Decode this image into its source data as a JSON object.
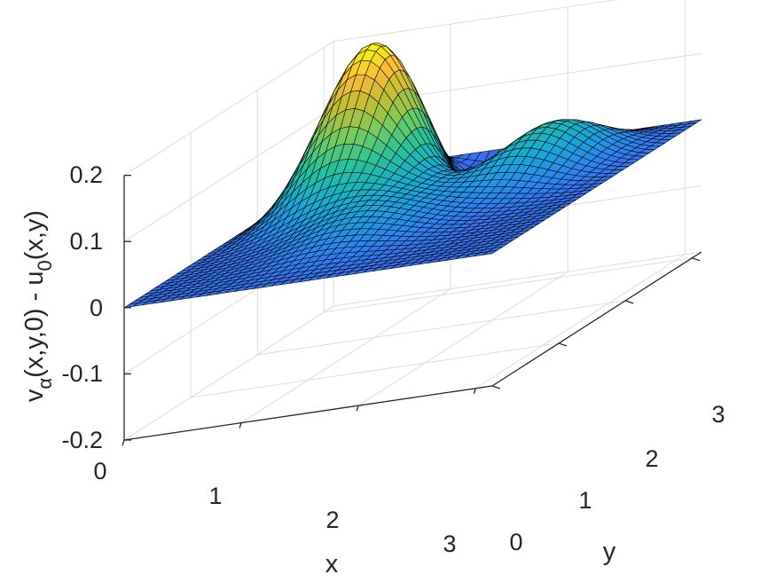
{
  "chart_data": {
    "type": "surface",
    "xlabel": "x",
    "ylabel": "y",
    "zlabel": {
      "main1": "v",
      "sub1": "α",
      "main2": "(x,y,0) - u",
      "sub2": "0",
      "main3": "(x,y)"
    },
    "xlim": [
      0,
      3.14159
    ],
    "ylim": [
      0,
      3.14159
    ],
    "zlim": [
      -0.2,
      0.2
    ],
    "x_ticks": [
      0,
      1,
      2,
      3
    ],
    "x_tick_labels": [
      "0",
      "1",
      "2",
      "3"
    ],
    "y_ticks": [
      0,
      1,
      2,
      3
    ],
    "y_tick_labels": [
      "0",
      "1",
      "2",
      "3"
    ],
    "z_ticks": [
      -0.2,
      -0.1,
      0,
      0.1,
      0.2
    ],
    "z_tick_labels": [
      "-0.2",
      "-0.1",
      "0",
      "0.1",
      "0.2"
    ],
    "grid": true,
    "colormap": "parula",
    "grid_resolution": 41,
    "surface_peaks": [
      {
        "x": 0.72,
        "y": 2.45,
        "z": 0.2
      },
      {
        "x": 2.3,
        "y": 2.65,
        "z": 0.08
      },
      {
        "x": 1.4,
        "y": 1.05,
        "z": 0.04
      },
      {
        "x": 1.65,
        "y": 3.0,
        "z": -0.07
      }
    ],
    "line_color": "#000000"
  }
}
